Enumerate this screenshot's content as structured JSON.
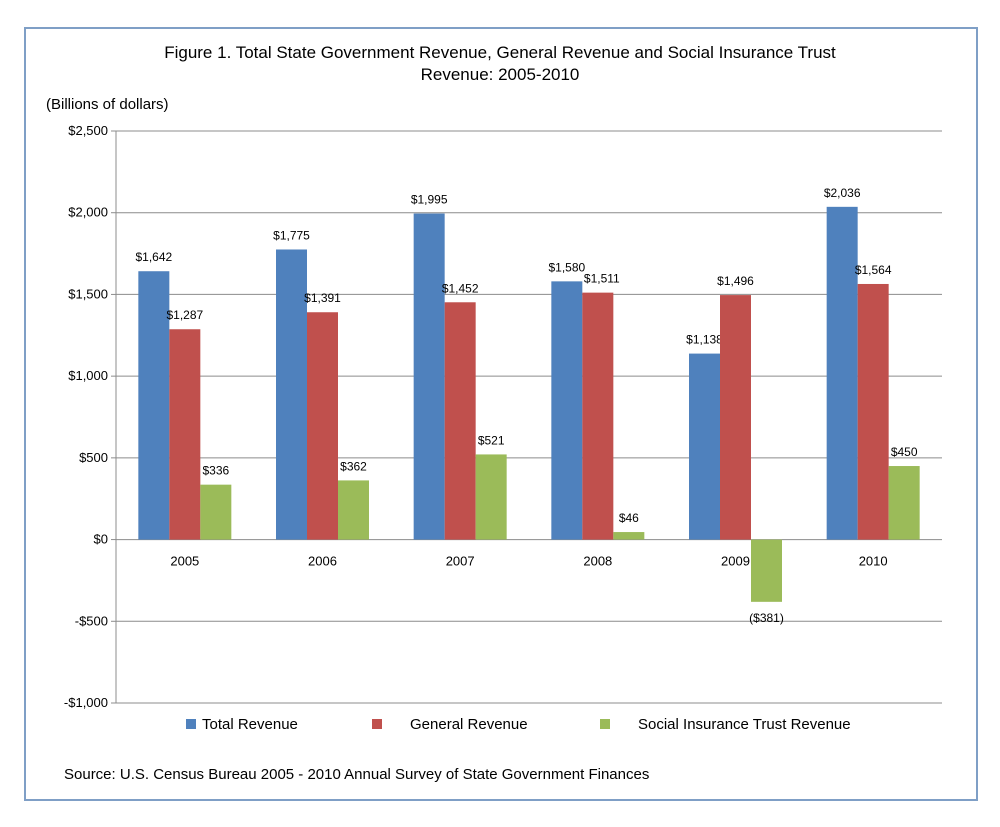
{
  "chart_data": {
    "type": "bar",
    "title_line1": "Figure 1. Total State Government Revenue, General Revenue and Social Insurance Trust",
    "title_line2": "Revenue: 2005-2010",
    "ylabel": "(Billions of dollars)",
    "xlabel": "",
    "categories": [
      "2005",
      "2006",
      "2007",
      "2008",
      "2009",
      "2010"
    ],
    "ylim": [
      -1000,
      2500
    ],
    "yticks": [
      2500,
      2000,
      1500,
      1000,
      500,
      0,
      -500,
      -1000
    ],
    "ytick_labels": [
      "$2,500",
      "$2,000",
      "$1,500",
      "$1,000",
      "$500",
      "$0",
      "-$500",
      "-$1,000"
    ],
    "grid": true,
    "legend_position": "bottom",
    "series": [
      {
        "name": "Total Revenue",
        "color": "#4f81bd",
        "values": [
          1642,
          1775,
          1995,
          1580,
          1138,
          2036
        ],
        "labels": [
          "$1,642",
          "$1,775",
          "$1,995",
          "$1,580",
          "$1,138",
          "$2,036"
        ]
      },
      {
        "name": "General Revenue",
        "color": "#c0504d",
        "values": [
          1287,
          1391,
          1452,
          1511,
          1496,
          1564
        ],
        "labels": [
          "$1,287",
          "$1,391",
          "$1,452",
          "$1,511",
          "$1,496",
          "$1,564"
        ]
      },
      {
        "name": "Social Insurance Trust Revenue",
        "color": "#9bbb59",
        "values": [
          336,
          362,
          521,
          46,
          -381,
          450
        ],
        "labels": [
          "$336",
          "$362",
          "$521",
          "$46",
          "($381)",
          "$450"
        ]
      }
    ],
    "source": "Source: U.S. Census Bureau 2005 - 2010 Annual Survey of State Government Finances"
  }
}
